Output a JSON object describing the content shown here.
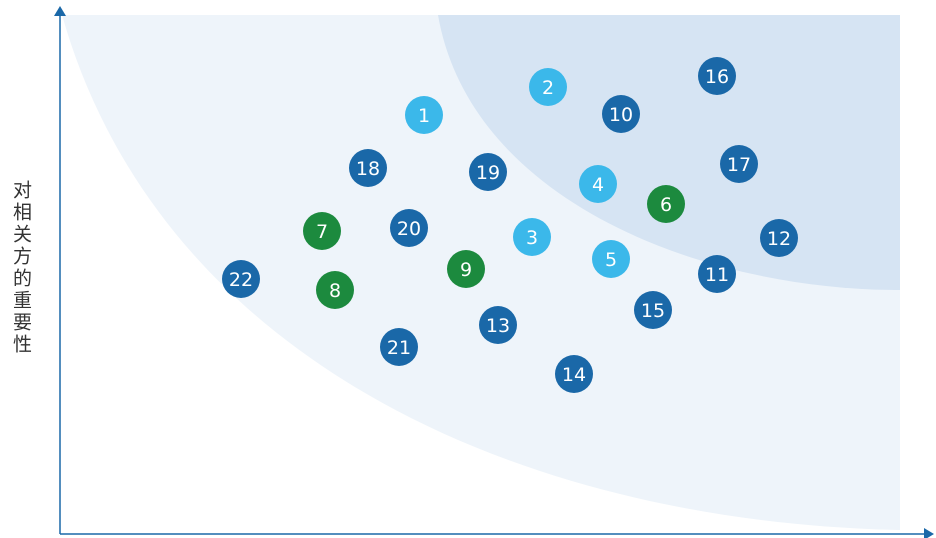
{
  "axis_label": "对相关方的重要性",
  "nodes": [
    {
      "label": "1",
      "color": "#3bb8ea"
    },
    {
      "label": "2",
      "color": "#3bb8ea"
    },
    {
      "label": "3",
      "color": "#3bb8ea"
    },
    {
      "label": "4",
      "color": "#3bb8ea"
    },
    {
      "label": "5",
      "color": "#3bb8ea"
    },
    {
      "label": "6",
      "color": "#1c8a3e"
    },
    {
      "label": "7",
      "color": "#1c8a3e"
    },
    {
      "label": "8",
      "color": "#1c8a3e"
    },
    {
      "label": "9",
      "color": "#1c8a3e"
    },
    {
      "label": "10",
      "color": "#1a68a8"
    },
    {
      "label": "11",
      "color": "#1a68a8"
    },
    {
      "label": "12",
      "color": "#1a68a8"
    },
    {
      "label": "13",
      "color": "#1a68a8"
    },
    {
      "label": "14",
      "color": "#1a68a8"
    },
    {
      "label": "15",
      "color": "#1a68a8"
    },
    {
      "label": "16",
      "color": "#1a68a8"
    },
    {
      "label": "17",
      "color": "#1a68a8"
    },
    {
      "label": "18",
      "color": "#1a68a8"
    },
    {
      "label": "19",
      "color": "#1a68a8"
    },
    {
      "label": "20",
      "color": "#1a68a8"
    },
    {
      "label": "21",
      "color": "#1a68a8"
    },
    {
      "label": "22",
      "color": "#1a68a8"
    }
  ]
}
